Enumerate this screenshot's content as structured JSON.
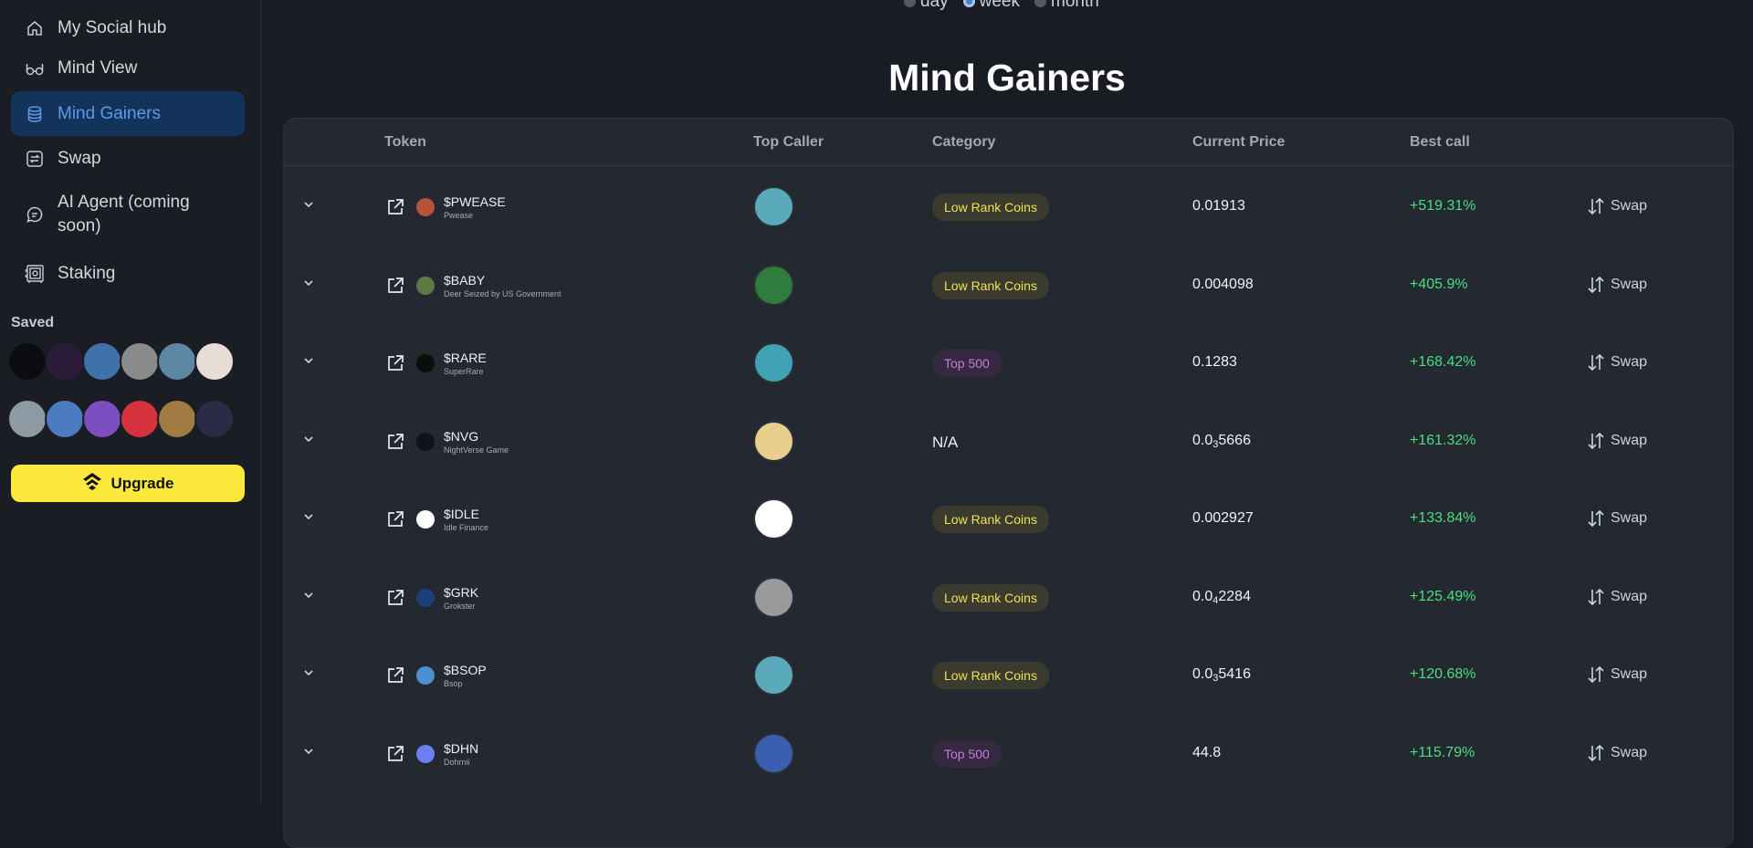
{
  "sidebar": {
    "items": [
      {
        "label": "My Social hub",
        "icon": "home-icon"
      },
      {
        "label": "Mind View",
        "icon": "glasses-icon"
      },
      {
        "label": "Mind Gainers",
        "icon": "database-icon",
        "active": true
      },
      {
        "label": "Swap",
        "icon": "swap-icon"
      },
      {
        "label": "AI Agent (coming soon)",
        "icon": "chat-icon"
      },
      {
        "label": "Staking",
        "icon": "safe-icon"
      }
    ],
    "saved_label": "Saved",
    "saved_avatar_colors": [
      [
        "#0b0d12",
        "#2b1c3a",
        "#3f72a8",
        "#8a8a8a",
        "#5d88a4",
        "#e8ddd6"
      ],
      [
        "#8e9aa3",
        "#4b7bc0",
        "#7c4fc0",
        "#d5323e",
        "#a07c43",
        "#2a2c45"
      ]
    ],
    "upgrade_label": "Upgrade"
  },
  "period": {
    "options": [
      "day",
      "week",
      "month"
    ],
    "selected": "week"
  },
  "page_title": "Mind Gainers",
  "table": {
    "headers": {
      "token": "Token",
      "top_caller": "Top Caller",
      "category": "Category",
      "current_price": "Current Price",
      "best_call": "Best call"
    },
    "swap_label": "Swap",
    "colors": {
      "gain": "#4ade80",
      "low_rank": "#efe25a",
      "top500": "#c27ee0"
    },
    "rows": [
      {
        "symbol": "$PWEASE",
        "name": "Pwease",
        "category": "Low Rank Coins",
        "cat_type": "low",
        "price": "0.01913",
        "price_sub": "",
        "price_rest": "",
        "best_call": "+519.31%",
        "logo": "#b5543a",
        "caller": "#5aaabc"
      },
      {
        "symbol": "$BABY",
        "name": "Deer Seized by US Government",
        "category": "Low Rank Coins",
        "cat_type": "low",
        "price": "0.004098",
        "price_sub": "",
        "price_rest": "",
        "best_call": "+405.9%",
        "logo": "#5d7a45",
        "caller": "#2f7d3c"
      },
      {
        "symbol": "$RARE",
        "name": "SuperRare",
        "category": "Top 500",
        "cat_type": "top",
        "price": "0.1283",
        "price_sub": "",
        "price_rest": "",
        "best_call": "+168.42%",
        "logo": "#0c0c0c",
        "caller": "#3fa3b3"
      },
      {
        "symbol": "$NVG",
        "name": "NightVerse Game",
        "category": "N/A",
        "cat_type": "na",
        "price": "0.0",
        "price_sub": "3",
        "price_rest": "5666",
        "best_call": "+161.32%",
        "logo": "#101418",
        "caller": "#e9cf8e"
      },
      {
        "symbol": "$IDLE",
        "name": "Idle Finance",
        "category": "Low Rank Coins",
        "cat_type": "low",
        "price": "0.002927",
        "price_sub": "",
        "price_rest": "",
        "best_call": "+133.84%",
        "logo": "#ffffff",
        "caller": "#ffffff"
      },
      {
        "symbol": "$GRK",
        "name": "Grokster",
        "category": "Low Rank Coins",
        "cat_type": "low",
        "price": "0.0",
        "price_sub": "4",
        "price_rest": "2284",
        "best_call": "+125.49%",
        "logo": "#1b3f7a",
        "caller": "#9a9a9a"
      },
      {
        "symbol": "$BSOP",
        "name": "Bsop",
        "category": "Low Rank Coins",
        "cat_type": "low",
        "price": "0.0",
        "price_sub": "3",
        "price_rest": "5416",
        "best_call": "+120.68%",
        "logo": "#4d8fd0",
        "caller": "#5aaabc"
      },
      {
        "symbol": "$DHN",
        "name": "Dohrnii",
        "category": "Top 500",
        "cat_type": "top",
        "price": "44.8",
        "price_sub": "",
        "price_rest": "",
        "best_call": "+115.79%",
        "logo": "#6c7ff0",
        "caller": "#3a5fb0"
      }
    ]
  }
}
